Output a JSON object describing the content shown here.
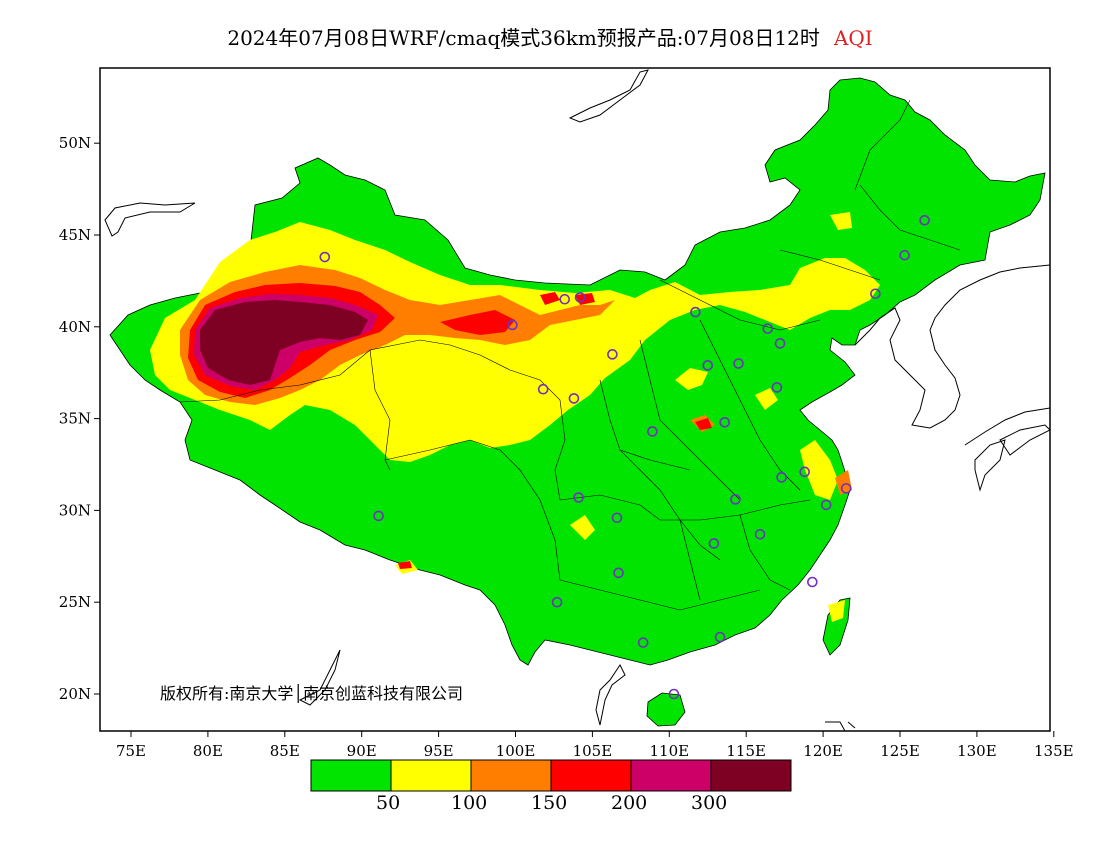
{
  "title": {
    "main": "2024年07月08日WRF/cmaq模式36km预报产品:07月08日12时",
    "variable": "AQI"
  },
  "copyright": "版权所有:南京大学│南京创蓝科技有限公司",
  "colors": {
    "level_1": "#00e400",
    "level_2": "#ffff00",
    "level_3": "#ff7e00",
    "level_4": "#ff0000",
    "level_5": "#cc0066",
    "level_6": "#7e0023",
    "station_marker": "#7030c0",
    "boundary": "#000000"
  },
  "axes": {
    "lon_ticks": [
      "75E",
      "80E",
      "85E",
      "90E",
      "95E",
      "100E",
      "105E",
      "110E",
      "115E",
      "120E",
      "125E",
      "130E",
      "135E"
    ],
    "lat_ticks": [
      "20N",
      "25N",
      "30N",
      "35N",
      "40N",
      "45N",
      "50N"
    ]
  },
  "legend": {
    "colors": [
      "#00e400",
      "#ffff00",
      "#ff7e00",
      "#ff0000",
      "#cc0066",
      "#7e0023"
    ],
    "labels": [
      "50",
      "100",
      "150",
      "200",
      "300"
    ]
  },
  "stations": [
    {
      "lon": 87.6,
      "lat": 43.8
    },
    {
      "lon": 91.1,
      "lat": 29.7
    },
    {
      "lon": 101.8,
      "lat": 36.6
    },
    {
      "lon": 103.8,
      "lat": 36.1
    },
    {
      "lon": 106.3,
      "lat": 38.5
    },
    {
      "lon": 104.1,
      "lat": 30.7
    },
    {
      "lon": 106.6,
      "lat": 29.6
    },
    {
      "lon": 106.7,
      "lat": 26.6
    },
    {
      "lon": 102.7,
      "lat": 25.0
    },
    {
      "lon": 108.3,
      "lat": 22.8
    },
    {
      "lon": 110.3,
      "lat": 20.0
    },
    {
      "lon": 113.3,
      "lat": 23.1
    },
    {
      "lon": 112.9,
      "lat": 28.2
    },
    {
      "lon": 114.3,
      "lat": 30.6
    },
    {
      "lon": 115.9,
      "lat": 28.7
    },
    {
      "lon": 119.3,
      "lat": 26.1
    },
    {
      "lon": 120.2,
      "lat": 30.3
    },
    {
      "lon": 121.5,
      "lat": 31.2
    },
    {
      "lon": 118.8,
      "lat": 32.1
    },
    {
      "lon": 117.3,
      "lat": 31.8
    },
    {
      "lon": 113.6,
      "lat": 34.8
    },
    {
      "lon": 108.9,
      "lat": 34.3
    },
    {
      "lon": 112.5,
      "lat": 37.9
    },
    {
      "lon": 114.5,
      "lat": 38.0
    },
    {
      "lon": 117.0,
      "lat": 36.7
    },
    {
      "lon": 117.2,
      "lat": 39.1
    },
    {
      "lon": 116.4,
      "lat": 39.9
    },
    {
      "lon": 111.7,
      "lat": 40.8
    },
    {
      "lon": 123.4,
      "lat": 41.8
    },
    {
      "lon": 125.3,
      "lat": 43.9
    },
    {
      "lon": 126.6,
      "lat": 45.8
    },
    {
      "lon": 103.2,
      "lat": 41.5
    },
    {
      "lon": 104.2,
      "lat": 41.6
    },
    {
      "lon": 99.8,
      "lat": 40.1
    }
  ]
}
